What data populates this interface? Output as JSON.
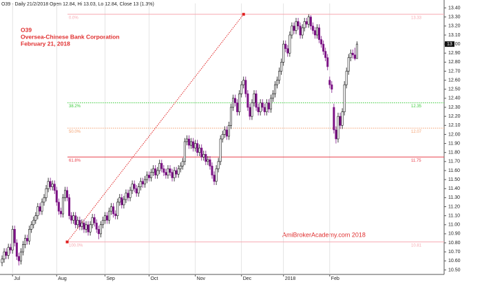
{
  "chart_data": {
    "type": "candlestick",
    "header": "O39 - Daily 21/2/2018 Open 12.84, Hi 13.03, Lo 12.84, Close 13 (1.3%)",
    "title": "O39",
    "subtitle": "Oversea-Chinese Bank Corporation",
    "date": "February 21, 2018",
    "watermark": "AmiBrokerAcademy.com  2018",
    "up_color": "#ffffff",
    "down_color": "#7b1184",
    "grid": true,
    "categories": [
      null,
      null,
      null,
      null,
      null,
      "Jul",
      null,
      null,
      null,
      null,
      null,
      null,
      null,
      null,
      null,
      null,
      null,
      null,
      null,
      null,
      null,
      null,
      null,
      null,
      null,
      null,
      "Aug",
      null,
      null,
      null,
      null,
      null,
      null,
      null,
      null,
      null,
      null,
      null,
      null,
      null,
      null,
      null,
      null,
      null,
      null,
      null,
      null,
      null,
      null,
      "Sep",
      null,
      null,
      null,
      null,
      null,
      null,
      null,
      null,
      null,
      null,
      null,
      null,
      null,
      null,
      null,
      null,
      null,
      null,
      null,
      null,
      "Oct",
      null,
      null,
      null,
      null,
      null,
      null,
      null,
      null,
      null,
      null,
      null,
      null,
      null,
      null,
      null,
      null,
      null,
      null,
      null,
      null,
      null,
      "Nov",
      null,
      null,
      null,
      null,
      null,
      null,
      null,
      null,
      null,
      null,
      null,
      null,
      null,
      null,
      null,
      null,
      null,
      null,
      null,
      null,
      null,
      "Dec",
      null,
      null,
      null,
      null,
      null,
      null,
      null,
      null,
      null,
      null,
      null,
      null,
      null,
      null,
      null,
      null,
      null,
      null,
      null,
      "2018",
      null,
      null,
      null,
      null,
      null,
      null,
      null,
      null,
      null,
      null,
      null,
      null,
      null,
      null,
      null,
      null,
      null,
      null,
      null,
      null,
      null,
      "Feb",
      null,
      null,
      null,
      null,
      null,
      null,
      null,
      null,
      null,
      null,
      null,
      null,
      null
    ],
    "candles": [
      [
        10.58,
        10.66,
        10.54,
        10.62
      ],
      [
        10.62,
        10.74,
        10.58,
        10.7
      ],
      [
        10.7,
        10.74,
        10.62,
        10.66
      ],
      [
        10.66,
        10.79,
        10.62,
        10.75
      ],
      [
        10.75,
        10.79,
        10.68,
        10.72
      ],
      [
        10.72,
        10.99,
        10.68,
        10.95
      ],
      [
        10.95,
        10.99,
        10.76,
        10.8
      ],
      [
        10.8,
        10.84,
        10.61,
        10.65
      ],
      [
        10.65,
        10.69,
        10.55,
        10.6
      ],
      [
        10.6,
        10.74,
        10.56,
        10.7
      ],
      [
        10.7,
        10.82,
        10.66,
        10.78
      ],
      [
        10.78,
        10.89,
        10.74,
        10.85
      ],
      [
        10.85,
        10.89,
        10.78,
        10.82
      ],
      [
        10.82,
        10.99,
        10.78,
        10.95
      ],
      [
        10.95,
        11.04,
        10.91,
        11.0
      ],
      [
        11.0,
        11.09,
        10.96,
        11.05
      ],
      [
        11.05,
        11.14,
        11.01,
        11.1
      ],
      [
        11.1,
        11.24,
        11.06,
        11.2
      ],
      [
        11.2,
        11.24,
        11.11,
        11.15
      ],
      [
        11.15,
        11.29,
        11.11,
        11.25
      ],
      [
        11.25,
        11.34,
        11.21,
        11.3
      ],
      [
        11.3,
        11.44,
        11.26,
        11.4
      ],
      [
        11.4,
        11.52,
        11.36,
        11.48
      ],
      [
        11.48,
        11.52,
        11.38,
        11.42
      ],
      [
        11.42,
        11.49,
        11.38,
        11.45
      ],
      [
        11.45,
        11.49,
        11.34,
        11.38
      ],
      [
        11.38,
        11.42,
        11.21,
        11.25
      ],
      [
        11.25,
        11.29,
        11.11,
        11.15
      ],
      [
        11.15,
        11.19,
        11.08,
        11.12
      ],
      [
        11.12,
        11.34,
        11.08,
        11.3
      ],
      [
        11.3,
        11.42,
        11.26,
        11.38
      ],
      [
        11.38,
        11.42,
        11.26,
        11.3
      ],
      [
        11.3,
        11.34,
        11.06,
        11.1
      ],
      [
        11.1,
        11.14,
        11.01,
        11.05
      ],
      [
        11.05,
        11.14,
        11.01,
        11.1
      ],
      [
        11.1,
        11.14,
        10.96,
        11.0
      ],
      [
        11.0,
        11.09,
        10.96,
        11.05
      ],
      [
        11.05,
        11.09,
        10.94,
        10.98
      ],
      [
        10.98,
        11.06,
        10.94,
        11.02
      ],
      [
        11.02,
        11.06,
        10.91,
        10.95
      ],
      [
        10.95,
        11.04,
        10.91,
        11.0
      ],
      [
        11.0,
        11.04,
        10.88,
        10.92
      ],
      [
        10.92,
        11.04,
        10.88,
        11.0
      ],
      [
        11.0,
        11.12,
        10.96,
        11.08
      ],
      [
        11.08,
        11.12,
        10.98,
        11.02
      ],
      [
        11.02,
        11.06,
        10.91,
        10.95
      ],
      [
        10.95,
        10.99,
        10.84,
        10.9
      ],
      [
        10.9,
        11.04,
        10.86,
        11.0
      ],
      [
        11.0,
        11.09,
        10.96,
        11.05
      ],
      [
        11.05,
        11.14,
        11.01,
        11.1
      ],
      [
        11.1,
        11.14,
        11.01,
        11.05
      ],
      [
        11.05,
        11.19,
        11.01,
        11.15
      ],
      [
        11.15,
        11.24,
        11.11,
        11.2
      ],
      [
        11.2,
        11.24,
        11.08,
        11.12
      ],
      [
        11.12,
        11.16,
        11.06,
        11.1
      ],
      [
        11.1,
        11.29,
        11.06,
        11.25
      ],
      [
        11.25,
        11.34,
        11.21,
        11.3
      ],
      [
        11.3,
        11.34,
        11.18,
        11.22
      ],
      [
        11.22,
        11.32,
        11.18,
        11.28
      ],
      [
        11.28,
        11.39,
        11.24,
        11.35
      ],
      [
        11.35,
        11.39,
        11.26,
        11.3
      ],
      [
        11.3,
        11.42,
        11.26,
        11.38
      ],
      [
        11.38,
        11.49,
        11.34,
        11.45
      ],
      [
        11.45,
        11.49,
        11.36,
        11.4
      ],
      [
        11.4,
        11.44,
        11.31,
        11.35
      ],
      [
        11.35,
        11.46,
        11.31,
        11.42
      ],
      [
        11.42,
        11.52,
        11.38,
        11.48
      ],
      [
        11.48,
        11.52,
        11.41,
        11.45
      ],
      [
        11.45,
        11.54,
        11.41,
        11.5
      ],
      [
        11.5,
        11.59,
        11.46,
        11.55
      ],
      [
        11.55,
        11.59,
        11.48,
        11.52
      ],
      [
        11.52,
        11.62,
        11.48,
        11.58
      ],
      [
        11.58,
        11.66,
        11.54,
        11.62
      ],
      [
        11.62,
        11.66,
        11.51,
        11.55
      ],
      [
        11.55,
        11.64,
        11.51,
        11.6
      ],
      [
        11.6,
        11.72,
        11.56,
        11.68
      ],
      [
        11.68,
        11.72,
        11.58,
        11.62
      ],
      [
        11.62,
        11.66,
        11.54,
        11.58
      ],
      [
        11.58,
        11.62,
        11.51,
        11.55
      ],
      [
        11.55,
        11.66,
        11.51,
        11.62
      ],
      [
        11.62,
        11.66,
        11.54,
        11.58
      ],
      [
        11.58,
        11.62,
        11.48,
        11.52
      ],
      [
        11.52,
        11.64,
        11.48,
        11.6
      ],
      [
        11.6,
        11.64,
        11.52,
        11.56
      ],
      [
        11.56,
        11.66,
        11.52,
        11.62
      ],
      [
        11.62,
        11.69,
        11.58,
        11.65
      ],
      [
        11.65,
        11.74,
        11.61,
        11.7
      ],
      [
        11.7,
        11.96,
        11.66,
        11.92
      ],
      [
        11.92,
        11.99,
        11.88,
        11.95
      ],
      [
        11.95,
        11.99,
        11.84,
        11.88
      ],
      [
        11.88,
        11.96,
        11.84,
        11.92
      ],
      [
        11.92,
        11.96,
        11.81,
        11.85
      ],
      [
        11.85,
        11.94,
        11.81,
        11.9
      ],
      [
        11.9,
        11.94,
        11.76,
        11.8
      ],
      [
        11.8,
        11.89,
        11.76,
        11.85
      ],
      [
        11.85,
        11.89,
        11.71,
        11.75
      ],
      [
        11.75,
        11.82,
        11.71,
        11.78
      ],
      [
        11.78,
        11.82,
        11.66,
        11.7
      ],
      [
        11.7,
        11.76,
        11.66,
        11.72
      ],
      [
        11.72,
        11.76,
        11.61,
        11.65
      ],
      [
        11.65,
        11.69,
        11.51,
        11.55
      ],
      [
        11.55,
        11.59,
        11.44,
        11.48
      ],
      [
        11.48,
        11.66,
        11.44,
        11.62
      ],
      [
        11.62,
        11.74,
        11.58,
        11.7
      ],
      [
        11.7,
        11.99,
        11.66,
        11.95
      ],
      [
        11.95,
        12.04,
        11.91,
        12.0
      ],
      [
        12.0,
        12.09,
        11.96,
        12.05
      ],
      [
        12.05,
        12.09,
        11.94,
        11.98
      ],
      [
        11.98,
        12.14,
        11.94,
        12.1
      ],
      [
        12.1,
        12.34,
        12.06,
        12.3
      ],
      [
        12.3,
        12.44,
        12.26,
        12.4
      ],
      [
        12.4,
        12.44,
        12.31,
        12.35
      ],
      [
        12.35,
        12.39,
        12.21,
        12.25
      ],
      [
        12.25,
        12.49,
        12.21,
        12.45
      ],
      [
        12.45,
        12.59,
        12.41,
        12.55
      ],
      [
        12.55,
        12.64,
        12.51,
        12.6
      ],
      [
        12.6,
        12.64,
        12.41,
        12.45
      ],
      [
        12.45,
        12.49,
        12.26,
        12.3
      ],
      [
        12.3,
        12.34,
        12.16,
        12.2
      ],
      [
        12.2,
        12.39,
        12.16,
        12.35
      ],
      [
        12.35,
        12.49,
        12.31,
        12.45
      ],
      [
        12.45,
        12.49,
        12.26,
        12.3
      ],
      [
        12.3,
        12.34,
        12.21,
        12.25
      ],
      [
        12.25,
        12.39,
        12.21,
        12.35
      ],
      [
        12.35,
        12.39,
        12.26,
        12.3
      ],
      [
        12.3,
        12.34,
        12.21,
        12.25
      ],
      [
        12.25,
        12.39,
        12.21,
        12.35
      ],
      [
        12.35,
        12.39,
        12.24,
        12.28
      ],
      [
        12.28,
        12.44,
        12.24,
        12.4
      ],
      [
        12.4,
        12.49,
        12.36,
        12.45
      ],
      [
        12.45,
        12.59,
        12.41,
        12.55
      ],
      [
        12.55,
        12.64,
        12.51,
        12.6
      ],
      [
        12.6,
        12.74,
        12.56,
        12.7
      ],
      [
        12.7,
        12.84,
        12.66,
        12.8
      ],
      [
        12.8,
        13.04,
        12.76,
        13.0
      ],
      [
        13.0,
        13.04,
        12.91,
        12.95
      ],
      [
        12.95,
        12.99,
        12.86,
        12.9
      ],
      [
        12.9,
        13.14,
        12.86,
        13.1
      ],
      [
        13.1,
        13.24,
        13.06,
        13.2
      ],
      [
        13.2,
        13.24,
        13.11,
        13.15
      ],
      [
        13.15,
        13.29,
        13.11,
        13.25
      ],
      [
        13.25,
        13.29,
        13.16,
        13.2
      ],
      [
        13.2,
        13.24,
        13.06,
        13.1
      ],
      [
        13.1,
        13.22,
        13.06,
        13.18
      ],
      [
        13.18,
        13.29,
        13.14,
        13.25
      ],
      [
        13.25,
        13.29,
        13.18,
        13.22
      ],
      [
        13.22,
        13.33,
        13.18,
        13.3
      ],
      [
        13.3,
        13.32,
        13.16,
        13.2
      ],
      [
        13.2,
        13.24,
        13.11,
        13.15
      ],
      [
        13.15,
        13.19,
        13.06,
        13.1
      ],
      [
        13.1,
        13.22,
        13.06,
        13.18
      ],
      [
        13.18,
        13.22,
        13.01,
        13.05
      ],
      [
        13.05,
        13.09,
        12.96,
        13.0
      ],
      [
        13.0,
        13.04,
        12.88,
        12.92
      ],
      [
        12.92,
        12.96,
        12.81,
        12.85
      ],
      [
        12.85,
        12.89,
        12.71,
        12.75
      ],
      [
        12.6,
        12.64,
        12.51,
        12.55
      ],
      [
        12.55,
        12.59,
        12.46,
        12.5
      ],
      [
        12.3,
        12.34,
        12.01,
        12.05
      ],
      [
        12.05,
        12.09,
        11.9,
        11.95
      ],
      [
        11.95,
        12.24,
        11.91,
        12.2
      ],
      [
        12.2,
        12.24,
        12.06,
        12.1
      ],
      [
        12.1,
        12.29,
        12.06,
        12.25
      ],
      [
        12.25,
        12.59,
        12.21,
        12.55
      ],
      [
        12.55,
        12.74,
        12.51,
        12.7
      ],
      [
        12.7,
        12.89,
        12.66,
        12.85
      ],
      [
        12.85,
        12.94,
        12.81,
        12.9
      ],
      [
        12.9,
        12.94,
        12.84,
        12.88
      ],
      [
        12.88,
        12.96,
        12.82,
        12.84
      ],
      [
        12.84,
        13.03,
        12.84,
        13.0
      ]
    ],
    "ylim": [
      10.45,
      13.45
    ],
    "yticks": [
      {
        "value": 10.5,
        "label": "10.50"
      },
      {
        "value": 10.6,
        "label": "10.60"
      },
      {
        "value": 10.7,
        "label": "10.70"
      },
      {
        "value": 10.8,
        "label": "10.80"
      },
      {
        "value": 10.9,
        "label": "10.90"
      },
      {
        "value": 11,
        "label": "11.00"
      },
      {
        "value": 11.1,
        "label": "11.10"
      },
      {
        "value": 11.2,
        "label": "11.20"
      },
      {
        "value": 11.3,
        "label": "11.30"
      },
      {
        "value": 11.4,
        "label": "11.40"
      },
      {
        "value": 11.5,
        "label": "11.50"
      },
      {
        "value": 11.6,
        "label": "11.60"
      },
      {
        "value": 11.7,
        "label": "11.70"
      },
      {
        "value": 11.8,
        "label": "11.80"
      },
      {
        "value": 11.9,
        "label": "11.90"
      },
      {
        "value": 12,
        "label": "12.00"
      },
      {
        "value": 12.1,
        "label": "12.10"
      },
      {
        "value": 12.2,
        "label": "12.20"
      },
      {
        "value": 12.3,
        "label": "12.30"
      },
      {
        "value": 12.4,
        "label": "12.40"
      },
      {
        "value": 12.5,
        "label": "12.50"
      },
      {
        "value": 12.6,
        "label": "12.60"
      },
      {
        "value": 12.7,
        "label": "12.70"
      },
      {
        "value": 12.8,
        "label": "12.80"
      },
      {
        "value": 12.9,
        "label": "12.90"
      },
      {
        "value": 13,
        "label": "13.00"
      },
      {
        "value": 13.1,
        "label": "13.10"
      },
      {
        "value": 13.2,
        "label": "13.20"
      },
      {
        "value": 13.3,
        "label": "13.30"
      },
      {
        "value": 13.4,
        "label": "13.40"
      }
    ],
    "last_price": 13,
    "fib_levels": [
      {
        "label": "0.0%",
        "value": 13.33,
        "color": "#f7a8b0",
        "dash": false
      },
      {
        "label": "38.2%",
        "value": 12.35,
        "color": "#3ccc3c",
        "dash": true
      },
      {
        "label": "50.0%",
        "value": 12.07,
        "color": "#f4a070",
        "dash": true
      },
      {
        "label": "61.8%",
        "value": 11.75,
        "color": "#e8404c",
        "dash": false
      },
      {
        "label": "100.0%",
        "value": 10.81,
        "color": "#f7a8b0",
        "dash": false
      }
    ],
    "trendline": {
      "x": [
        31,
        115
      ],
      "y": [
        10.81,
        13.33
      ],
      "color": "#e02020"
    }
  }
}
